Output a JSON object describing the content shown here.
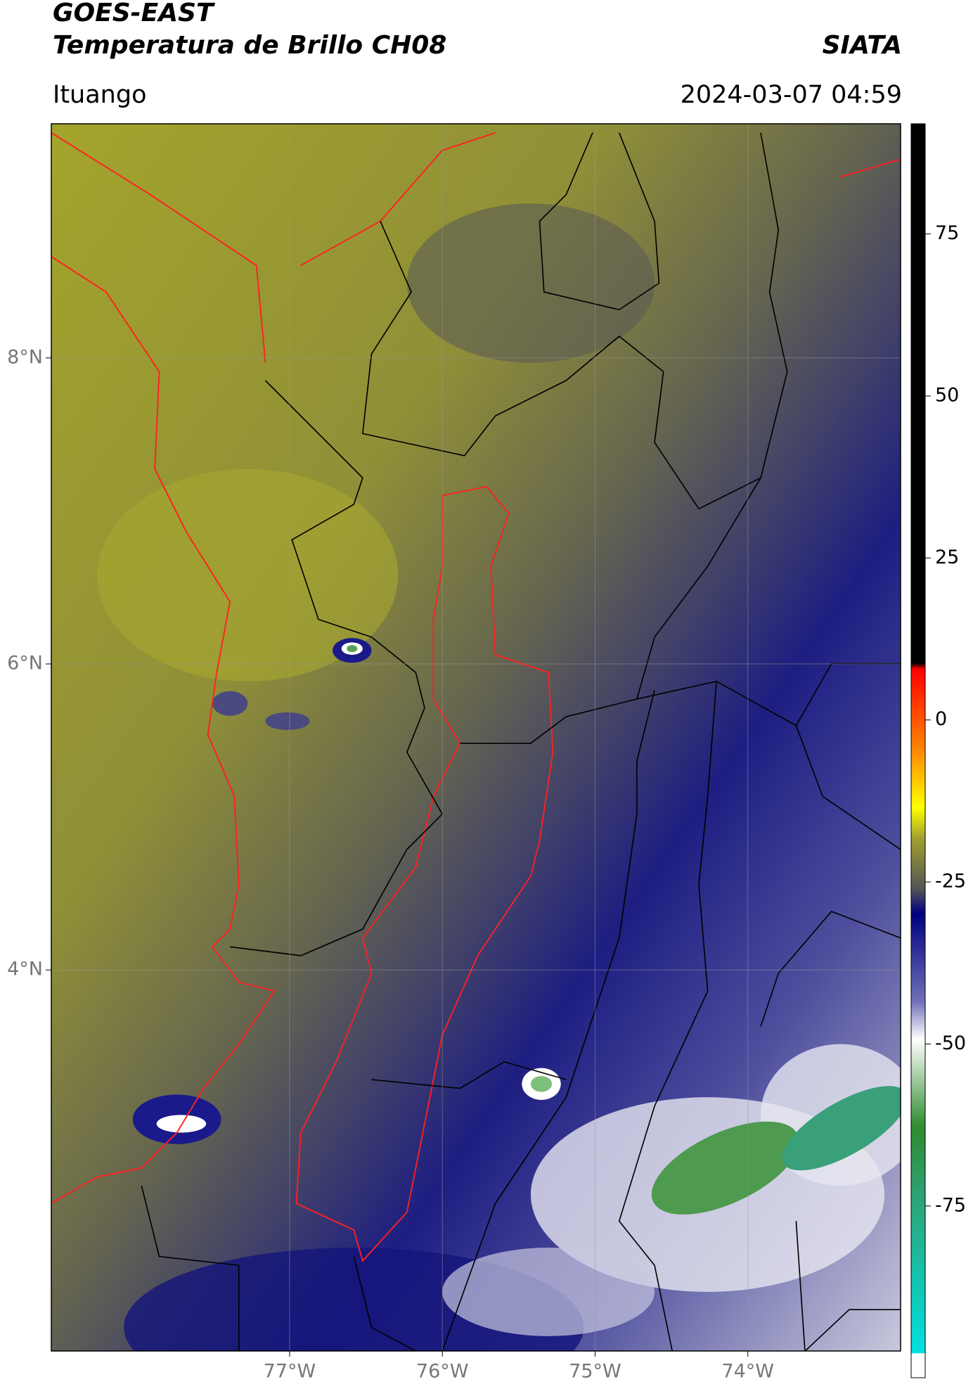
{
  "header": {
    "title": "GOES-EAST",
    "subtitle": "Temperatura de Brillo CH08",
    "source": "SIATA",
    "location": "Ituango",
    "timestamp": "2024-03-07 04:59"
  },
  "map": {
    "xlim": [
      -78.56,
      -73.0
    ],
    "ylim": [
      1.51,
      9.53
    ],
    "xticks": [
      {
        "value": -77,
        "label": "77°W"
      },
      {
        "value": -76,
        "label": "76°W"
      },
      {
        "value": -75,
        "label": "75°W"
      },
      {
        "value": -74,
        "label": "74°W"
      }
    ],
    "yticks": [
      {
        "value": 8,
        "label": "8°N"
      },
      {
        "value": 6,
        "label": "6°N"
      },
      {
        "value": 4,
        "label": "4°N"
      }
    ],
    "grid": true
  },
  "colorbar": {
    "clim": [
      -101.5,
      92
    ],
    "ticks": [
      75,
      50,
      25,
      0,
      -25,
      -50,
      -75
    ]
  }
}
